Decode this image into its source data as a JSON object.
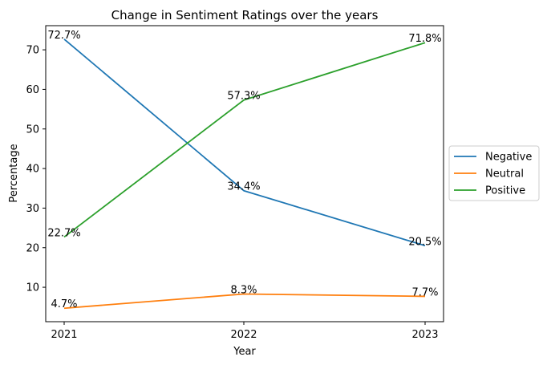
{
  "chart_data": {
    "type": "line",
    "title": "Change in Sentiment Ratings over the years",
    "xlabel": "Year",
    "ylabel": "Percentage",
    "categories": [
      "2021",
      "2022",
      "2023"
    ],
    "yticks": [
      10,
      20,
      30,
      40,
      50,
      60,
      70
    ],
    "ylim": [
      1.3,
      76.1
    ],
    "grid": false,
    "legend_position": "right",
    "series": [
      {
        "name": "Negative",
        "color": "#1f77b4",
        "values": [
          72.7,
          34.4,
          20.5
        ],
        "labels": [
          "72.7%",
          "34.4%",
          "20.5%"
        ]
      },
      {
        "name": "Neutral",
        "color": "#ff7f0e",
        "values": [
          4.7,
          8.3,
          7.7
        ],
        "labels": [
          "4.7%",
          "8.3%",
          "7.7%"
        ]
      },
      {
        "name": "Positive",
        "color": "#2ca02c",
        "values": [
          22.7,
          57.3,
          71.8
        ],
        "labels": [
          "22.7%",
          "57.3%",
          "71.8%"
        ]
      }
    ]
  }
}
